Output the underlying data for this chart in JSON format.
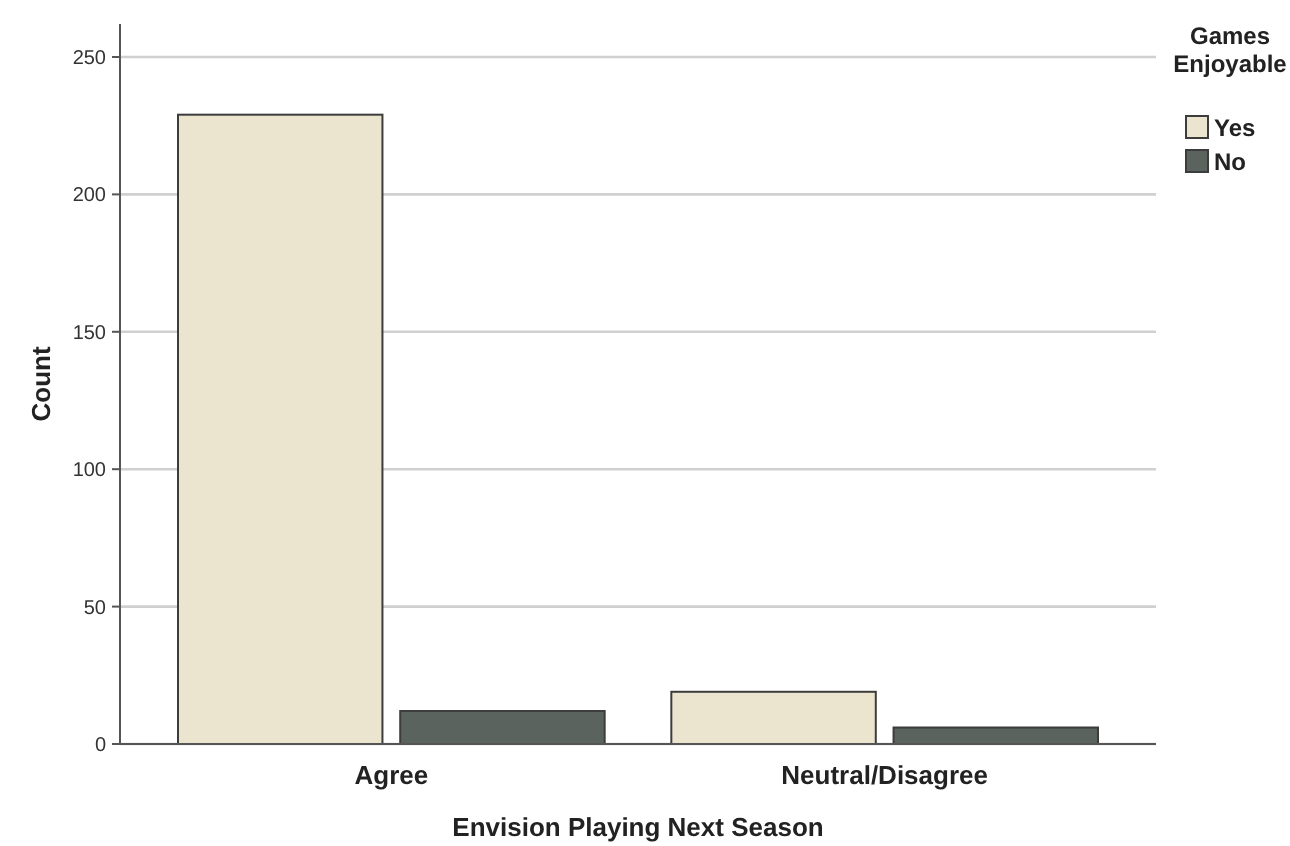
{
  "chart_data": {
    "type": "bar",
    "xlabel": "Envision Playing Next Season",
    "ylabel": "Count",
    "legend_title": "Games Enjoyable",
    "categories": [
      "Agree",
      "Neutral/Disagree"
    ],
    "series": [
      {
        "name": "Yes",
        "color": "#ebe4cf",
        "values": [
          229,
          19
        ]
      },
      {
        "name": "No",
        "color": "#5a635d",
        "values": [
          12,
          6
        ]
      }
    ],
    "ylim": [
      0,
      262
    ],
    "yticks": [
      0,
      50,
      100,
      150,
      200,
      250
    ],
    "grid": "y",
    "legend": "top right"
  }
}
